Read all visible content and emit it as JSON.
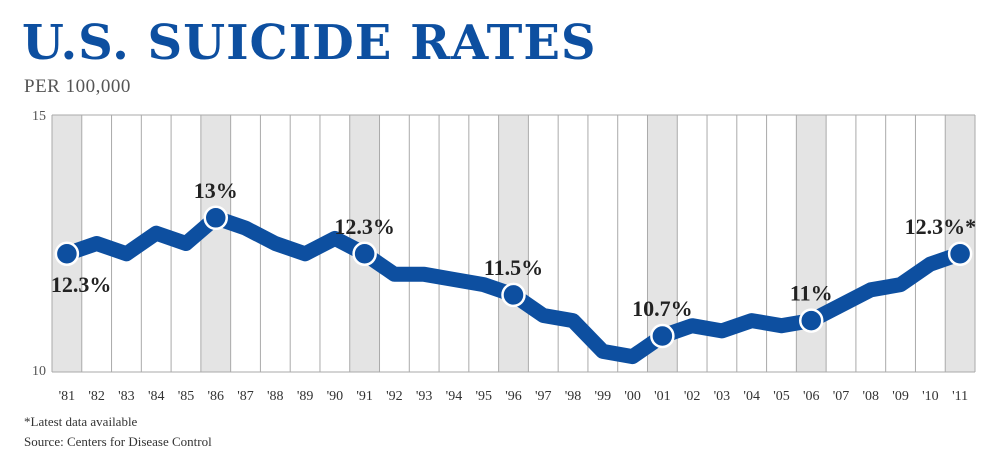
{
  "chart_data": {
    "type": "line",
    "title": "U.S. SUICIDE RATES",
    "subtitle": "PER 100,000",
    "categories": [
      "'81",
      "'82",
      "'83",
      "'84",
      "'85",
      "'86",
      "'87",
      "'88",
      "'89",
      "'90",
      "'91",
      "'92",
      "'93",
      "'94",
      "'95",
      "'96",
      "'97",
      "'98",
      "'99",
      "'00",
      "'01",
      "'02",
      "'03",
      "'04",
      "'05",
      "'06",
      "'07",
      "'08",
      "'09",
      "'10",
      "'11"
    ],
    "values": [
      12.3,
      12.5,
      12.3,
      12.7,
      12.5,
      13.0,
      12.8,
      12.5,
      12.3,
      12.6,
      12.3,
      11.9,
      11.9,
      11.8,
      11.7,
      11.5,
      11.1,
      11.0,
      10.4,
      10.3,
      10.7,
      10.9,
      10.8,
      11.0,
      10.9,
      11.0,
      11.3,
      11.6,
      11.7,
      12.1,
      12.3
    ],
    "ylim": [
      10,
      15
    ],
    "yticks": [
      "15",
      "10"
    ],
    "shaded_categories": [
      "'81",
      "'86",
      "'91",
      "'96",
      "'01",
      "'06",
      "'11"
    ],
    "annotations": [
      {
        "index": 0,
        "label": "12.3%",
        "position": "below"
      },
      {
        "index": 5,
        "label": "13%",
        "position": "above"
      },
      {
        "index": 10,
        "label": "12.3%",
        "position": "above"
      },
      {
        "index": 15,
        "label": "11.5%",
        "position": "above"
      },
      {
        "index": 20,
        "label": "10.7%",
        "position": "above"
      },
      {
        "index": 25,
        "label": "11%",
        "position": "above"
      },
      {
        "index": 30,
        "label": "12.3%*",
        "position": "above"
      }
    ],
    "grid": true,
    "colors": {
      "line": "#0d4fa0",
      "shade": "#e4e4e4",
      "grid": "#aaaaaa"
    }
  },
  "footnotes": {
    "latest": "*Latest data available",
    "source": "Source: Centers for Disease Control"
  }
}
